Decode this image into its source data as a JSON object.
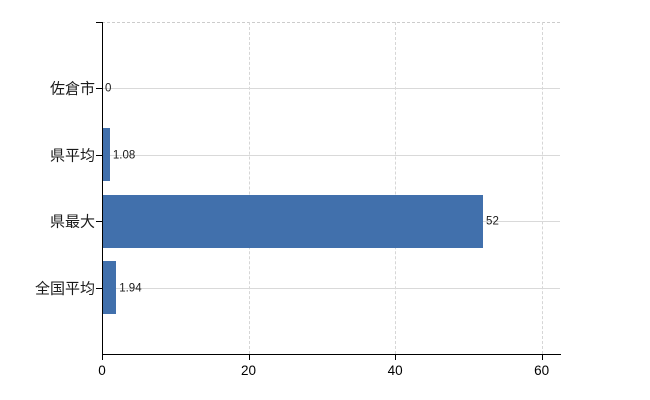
{
  "chart_data": {
    "type": "bar",
    "orientation": "horizontal",
    "title": "",
    "xlabel": "",
    "ylabel": "",
    "categories": [
      "佐倉市",
      "県平均",
      "県最大",
      "全国平均"
    ],
    "values": [
      0,
      1.08,
      52,
      1.94
    ],
    "value_labels": [
      "0",
      "1.08",
      "52",
      "1.94"
    ],
    "x_ticks": [
      0,
      20,
      40,
      60
    ],
    "x_tick_labels": [
      "0",
      "20",
      "40",
      "60"
    ],
    "xlim": [
      0,
      62.5
    ],
    "grid": true,
    "legend": false,
    "bar_color": "#4170ac",
    "gridline_color": "#d9d9d9",
    "axis_color": "#000000",
    "text_color": "#1a1a1a"
  }
}
